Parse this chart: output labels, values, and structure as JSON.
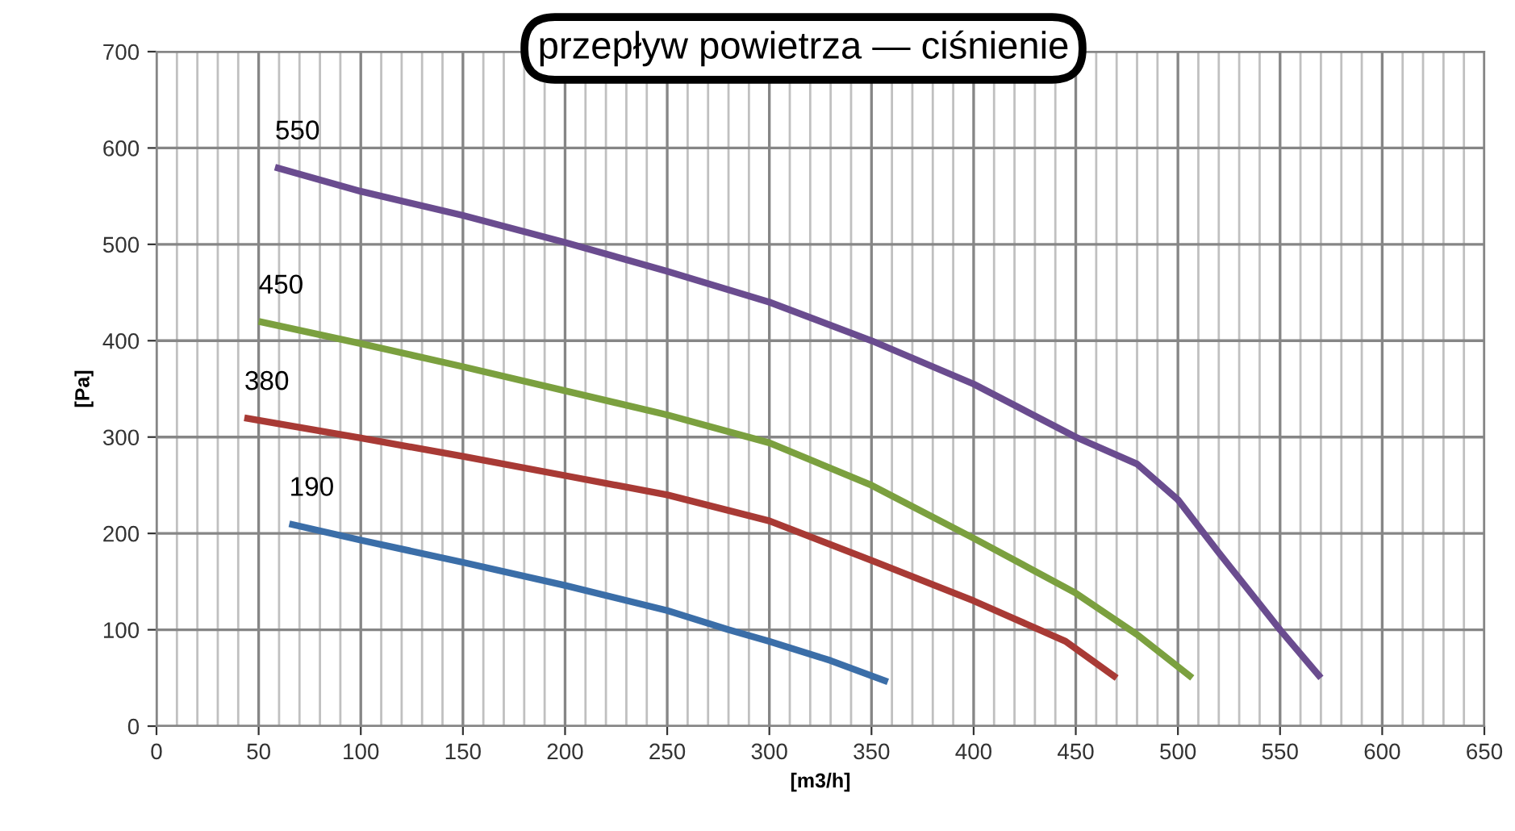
{
  "chart_data": {
    "type": "line",
    "title": "przepływ powietrza — ciśnienie",
    "xlabel": "[m3/h]",
    "ylabel": "[Pa]",
    "xlim": [
      0,
      650
    ],
    "xticks": [
      0,
      50,
      100,
      150,
      200,
      250,
      300,
      350,
      400,
      450,
      500,
      550,
      600,
      650
    ],
    "ylim": [
      0,
      700
    ],
    "yticks": [
      0,
      100,
      200,
      300,
      400,
      500,
      600,
      700
    ],
    "grid": true,
    "legend": false,
    "marker": "none",
    "line_style": "solid",
    "series": [
      {
        "name": "190",
        "color": "#3b6ea8",
        "x": [
          65,
          100,
          150,
          200,
          250,
          280,
          300,
          330,
          358
        ],
        "values": [
          210,
          193,
          170,
          146,
          120,
          100,
          88,
          68,
          46
        ]
      },
      {
        "name": "380",
        "color": "#a83a35",
        "x": [
          43,
          100,
          150,
          200,
          250,
          300,
          350,
          400,
          445,
          470
        ],
        "values": [
          320,
          299,
          280,
          260,
          240,
          213,
          172,
          130,
          88,
          50
        ]
      },
      {
        "name": "450",
        "color": "#7ba03f",
        "x": [
          50,
          100,
          150,
          200,
          250,
          300,
          350,
          400,
          450,
          480,
          507
        ],
        "values": [
          420,
          397,
          373,
          348,
          323,
          294,
          250,
          195,
          138,
          95,
          50
        ]
      },
      {
        "name": "550",
        "color": "#6a4c8f",
        "x": [
          58,
          100,
          150,
          200,
          250,
          300,
          350,
          400,
          450,
          480,
          500,
          520,
          550,
          570
        ],
        "values": [
          580,
          555,
          530,
          502,
          472,
          440,
          400,
          355,
          300,
          272,
          235,
          180,
          100,
          50
        ]
      }
    ]
  }
}
